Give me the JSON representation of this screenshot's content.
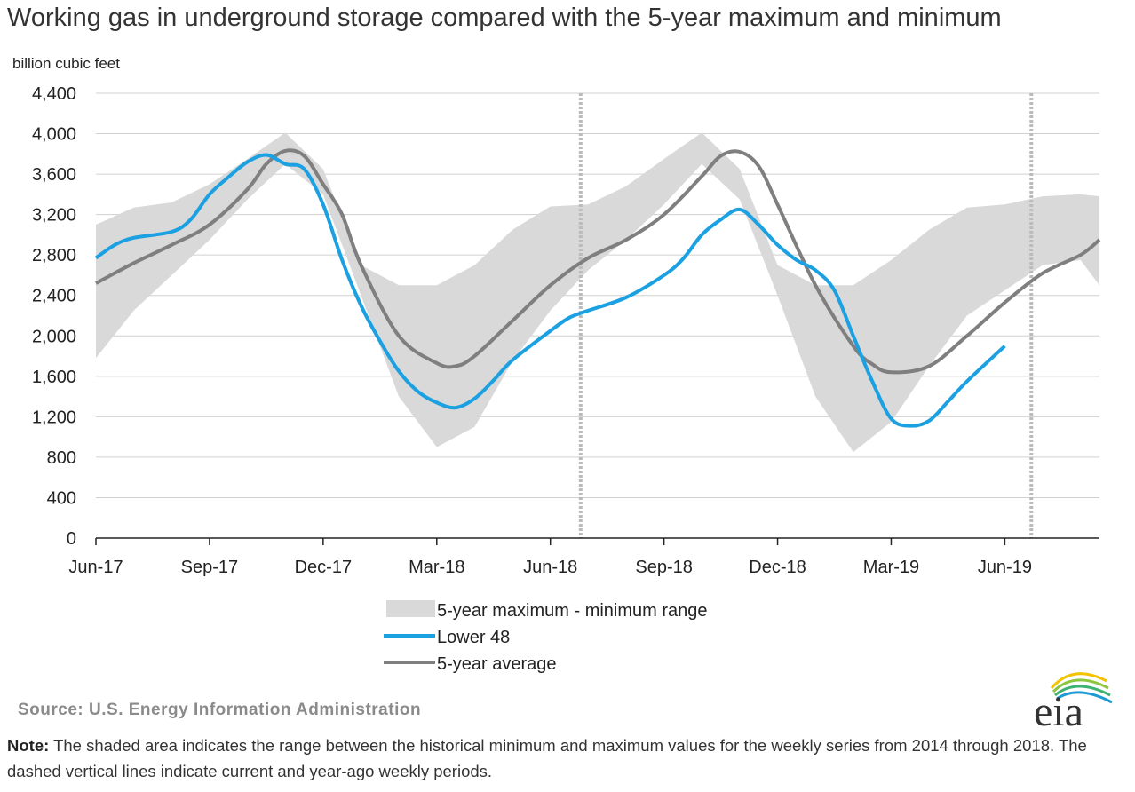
{
  "title": "Working gas in underground  storage compared with the 5-year maximum and minimum",
  "y_unit": "billion cubic feet",
  "source": "Source:  U.S. Energy Information Administration",
  "note_label": "Note:",
  "note_text": " The shaded area indicates the range between the historical minimum and maximum values for the weekly series from 2014 through 2018. The dashed vertical lines indicate current and year-ago weekly periods.",
  "logo_text": "eia",
  "colors": {
    "band": "#d9d9d9",
    "lower48": "#1ba1e2",
    "avg": "#7f7f7f",
    "dashed": "#bbbbbb",
    "grid": "#d0d0d0"
  },
  "chart_data": {
    "type": "area",
    "title": "Working gas in underground  storage compared with the 5-year maximum and minimum",
    "ylabel": "billion cubic feet",
    "xlabel": "",
    "ylim": [
      0,
      4400
    ],
    "yticks": [
      0,
      400,
      800,
      1200,
      1600,
      2000,
      2400,
      2800,
      3200,
      3600,
      4000,
      4400
    ],
    "ytick_labels": [
      "0",
      "400",
      "800",
      "1,200",
      "1,600",
      "2,000",
      "2,400",
      "2,800",
      "3,200",
      "3,600",
      "4,000",
      "4,400"
    ],
    "xticks": [
      "Jun-17",
      "Sep-17",
      "Dec-17",
      "Mar-18",
      "Jun-18",
      "Sep-18",
      "Dec-18",
      "Mar-19",
      "Jun-19"
    ],
    "xlim_months": [
      0,
      26.5
    ],
    "grid": true,
    "legend_position": "bottom",
    "dashed_vlines_months": [
      12.8,
      24.7
    ],
    "series": [
      {
        "name": "5-year maximum - minimum range",
        "kind": "band",
        "x": [
          0,
          1,
          2,
          3,
          4,
          5,
          6,
          7,
          8,
          9,
          10,
          11,
          12,
          13,
          14,
          15,
          16,
          17,
          18,
          19,
          20,
          21,
          22,
          23,
          24,
          25,
          26,
          26.5
        ],
        "min": [
          1780,
          2250,
          2600,
          2950,
          3350,
          3700,
          3400,
          2400,
          1400,
          900,
          1100,
          1750,
          2250,
          2650,
          2950,
          3300,
          3700,
          3350,
          2400,
          1400,
          850,
          1150,
          1700,
          2200,
          2450,
          2700,
          2750,
          2500
        ],
        "max": [
          3100,
          3270,
          3320,
          3500,
          3750,
          4010,
          3650,
          2700,
          2500,
          2500,
          2700,
          3050,
          3280,
          3300,
          3480,
          3750,
          4010,
          3650,
          2700,
          2500,
          2500,
          2750,
          3050,
          3270,
          3300,
          3380,
          3400,
          3380
        ]
      },
      {
        "name": "Lower 48",
        "kind": "line",
        "x": [
          0,
          0.5,
          1,
          2,
          2.5,
          3,
          3.5,
          4,
          4.5,
          5,
          5.5,
          6,
          6.5,
          7,
          7.5,
          8,
          8.5,
          9,
          9.5,
          10,
          10.5,
          11,
          12,
          12.5,
          13,
          14,
          15,
          15.5,
          16,
          16.5,
          17,
          17.5,
          18,
          18.5,
          19,
          19.5,
          20,
          20.5,
          21,
          21.5,
          22,
          22.5,
          23,
          24
        ],
        "values": [
          2770,
          2900,
          2970,
          3030,
          3150,
          3400,
          3570,
          3720,
          3790,
          3700,
          3650,
          3300,
          2750,
          2300,
          1950,
          1650,
          1450,
          1340,
          1290,
          1380,
          1560,
          1760,
          2050,
          2180,
          2250,
          2380,
          2600,
          2760,
          3000,
          3150,
          3250,
          3100,
          2900,
          2750,
          2650,
          2450,
          2000,
          1550,
          1180,
          1110,
          1160,
          1350,
          1550,
          1900
        ]
      },
      {
        "name": "5-year average",
        "kind": "line",
        "x": [
          0,
          1,
          2,
          3,
          4,
          4.5,
          5,
          5.5,
          6,
          6.5,
          7,
          8,
          9,
          9.5,
          10,
          11,
          12,
          13,
          14,
          15,
          16,
          16.5,
          17,
          17.5,
          18,
          19,
          20,
          20.5,
          21,
          22,
          23,
          24,
          25,
          26,
          26.5
        ],
        "values": [
          2520,
          2720,
          2900,
          3100,
          3450,
          3700,
          3830,
          3780,
          3500,
          3200,
          2700,
          2000,
          1730,
          1700,
          1800,
          2150,
          2500,
          2770,
          2950,
          3200,
          3580,
          3780,
          3820,
          3680,
          3300,
          2500,
          1900,
          1720,
          1640,
          1700,
          2000,
          2330,
          2620,
          2800,
          2950
        ]
      }
    ]
  }
}
